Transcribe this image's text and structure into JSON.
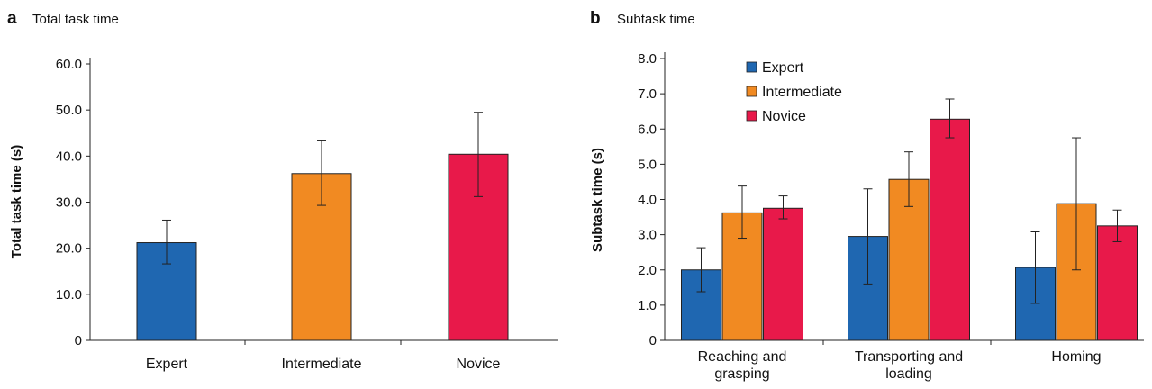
{
  "chart_data": [
    {
      "type": "bar",
      "panel_label": "a",
      "title": "Total task time",
      "xlabel": "",
      "ylabel": "Total task time (s)",
      "ylim": [
        0,
        60
      ],
      "yticks": [
        "0",
        "10.0",
        "20.0",
        "30.0",
        "40.0",
        "50.0",
        "60.0"
      ],
      "categories": [
        "Expert",
        "Intermediate",
        "Novice"
      ],
      "values": [
        21.2,
        36.2,
        40.4
      ],
      "error_low": [
        16.6,
        29.3,
        31.2
      ],
      "error_high": [
        26.1,
        43.3,
        49.5
      ],
      "colors": [
        "#1f67b1",
        "#f18a22",
        "#e8194a"
      ],
      "grid": false,
      "legend": "none"
    },
    {
      "type": "bar",
      "panel_label": "b",
      "title": "Subtask time",
      "xlabel": "",
      "ylabel": "Subtask time (s)",
      "ylim": [
        0,
        8
      ],
      "yticks": [
        "0",
        "1.0",
        "2.0",
        "3.0",
        "4.0",
        "5.0",
        "6.0",
        "7.0",
        "8.0"
      ],
      "categories": [
        [
          "Reaching and",
          "grasping"
        ],
        [
          "Transporting and",
          "loading"
        ],
        [
          "Homing"
        ]
      ],
      "series": [
        {
          "name": "Expert",
          "color": "#1f67b1",
          "values": [
            2.0,
            2.95,
            2.07
          ],
          "error_low": [
            1.38,
            1.6,
            1.05
          ],
          "error_high": [
            2.63,
            4.3,
            3.08
          ]
        },
        {
          "name": "Intermediate",
          "color": "#f18a22",
          "values": [
            3.62,
            4.57,
            3.88
          ],
          "error_low": [
            2.9,
            3.8,
            2.0
          ],
          "error_high": [
            4.38,
            5.35,
            5.75
          ]
        },
        {
          "name": "Novice",
          "color": "#e8194a",
          "values": [
            3.75,
            6.28,
            3.25
          ],
          "error_low": [
            3.45,
            5.75,
            2.8
          ],
          "error_high": [
            4.1,
            6.85,
            3.7
          ]
        }
      ],
      "grid": false,
      "legend": "top-left"
    }
  ]
}
